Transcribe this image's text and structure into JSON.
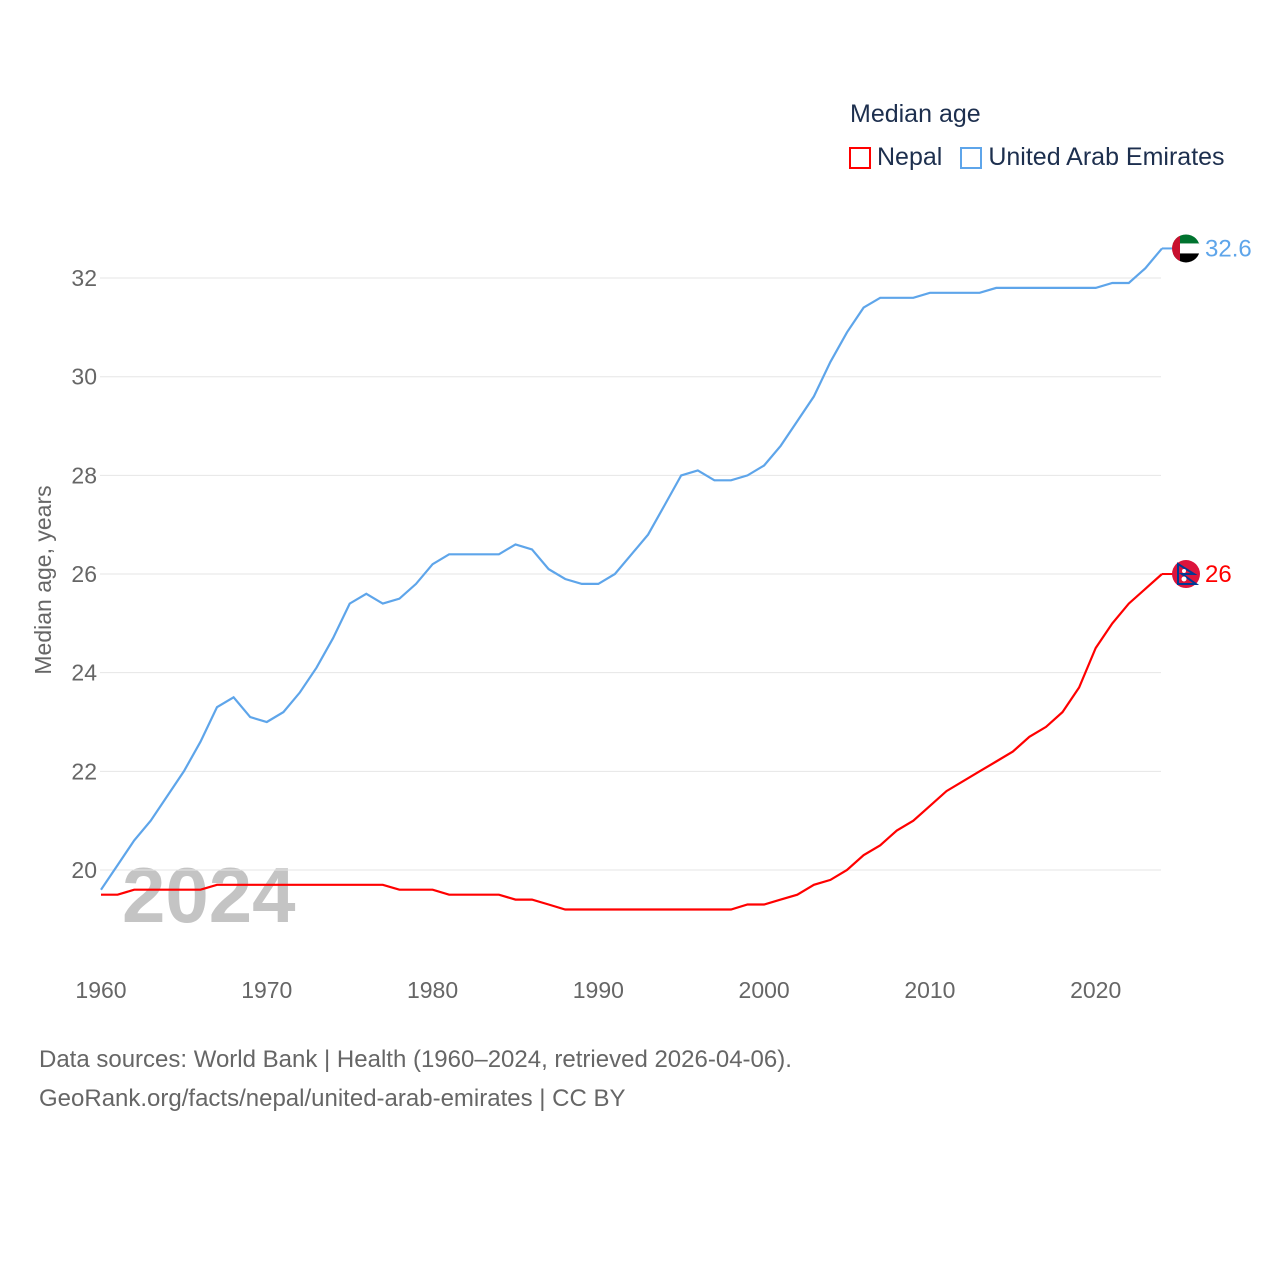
{
  "chart_data": {
    "type": "line",
    "title": "",
    "legend_title": "Median age",
    "legend_placement": "top-right",
    "xlabel": "",
    "ylabel": "Median age, years",
    "xlim": [
      1960,
      2024
    ],
    "ylim": [
      20,
      32
    ],
    "xticks": [
      "1960",
      "1970",
      "1980",
      "1990",
      "2000",
      "2010",
      "2020"
    ],
    "yticks": [
      "20",
      "22",
      "24",
      "26",
      "28",
      "30",
      "32"
    ],
    "x": [
      1960,
      1961,
      1962,
      1963,
      1964,
      1965,
      1966,
      1967,
      1968,
      1969,
      1970,
      1971,
      1972,
      1973,
      1974,
      1975,
      1976,
      1977,
      1978,
      1979,
      1980,
      1981,
      1982,
      1983,
      1984,
      1985,
      1986,
      1987,
      1988,
      1989,
      1990,
      1991,
      1992,
      1993,
      1994,
      1995,
      1996,
      1997,
      1998,
      1999,
      2000,
      2001,
      2002,
      2003,
      2004,
      2005,
      2006,
      2007,
      2008,
      2009,
      2010,
      2011,
      2012,
      2013,
      2014,
      2015,
      2016,
      2017,
      2018,
      2019,
      2020,
      2021,
      2022,
      2023,
      2024
    ],
    "series": [
      {
        "name": "Nepal",
        "color": "#ff0000",
        "end_label": "26",
        "values": [
          19.5,
          19.5,
          19.6,
          19.6,
          19.6,
          19.6,
          19.6,
          19.7,
          19.7,
          19.7,
          19.7,
          19.7,
          19.7,
          19.7,
          19.7,
          19.7,
          19.7,
          19.7,
          19.6,
          19.6,
          19.6,
          19.5,
          19.5,
          19.5,
          19.5,
          19.4,
          19.4,
          19.3,
          19.2,
          19.2,
          19.2,
          19.2,
          19.2,
          19.2,
          19.2,
          19.2,
          19.2,
          19.2,
          19.2,
          19.3,
          19.3,
          19.4,
          19.5,
          19.7,
          19.8,
          20.0,
          20.3,
          20.5,
          20.8,
          21.0,
          21.3,
          21.6,
          21.8,
          22.0,
          22.2,
          22.4,
          22.7,
          22.9,
          23.2,
          23.7,
          24.5,
          25.0,
          25.4,
          25.7,
          26.0
        ]
      },
      {
        "name": "United Arab Emirates",
        "color": "#5ea5ea",
        "end_label": "32.6",
        "values": [
          19.6,
          20.1,
          20.6,
          21.0,
          21.5,
          22.0,
          22.6,
          23.3,
          23.5,
          23.1,
          23.0,
          23.2,
          23.6,
          24.1,
          24.7,
          25.4,
          25.6,
          25.4,
          25.5,
          25.8,
          26.2,
          26.4,
          26.4,
          26.4,
          26.4,
          26.6,
          26.5,
          26.1,
          25.9,
          25.8,
          25.8,
          26.0,
          26.4,
          26.8,
          27.4,
          28.0,
          28.1,
          27.9,
          27.9,
          28.0,
          28.2,
          28.6,
          29.1,
          29.6,
          30.3,
          30.9,
          31.4,
          31.6,
          31.6,
          31.6,
          31.7,
          31.7,
          31.7,
          31.7,
          31.8,
          31.8,
          31.8,
          31.8,
          31.8,
          31.8,
          31.8,
          31.9,
          31.9,
          32.2,
          32.6
        ]
      }
    ],
    "watermark": "2024"
  },
  "footer": {
    "line1": "Data sources: World Bank | Health (1960–2024, retrieved 2026-04-06).",
    "line2": "GeoRank.org/facts/nepal/united-arab-emirates | CC BY"
  }
}
